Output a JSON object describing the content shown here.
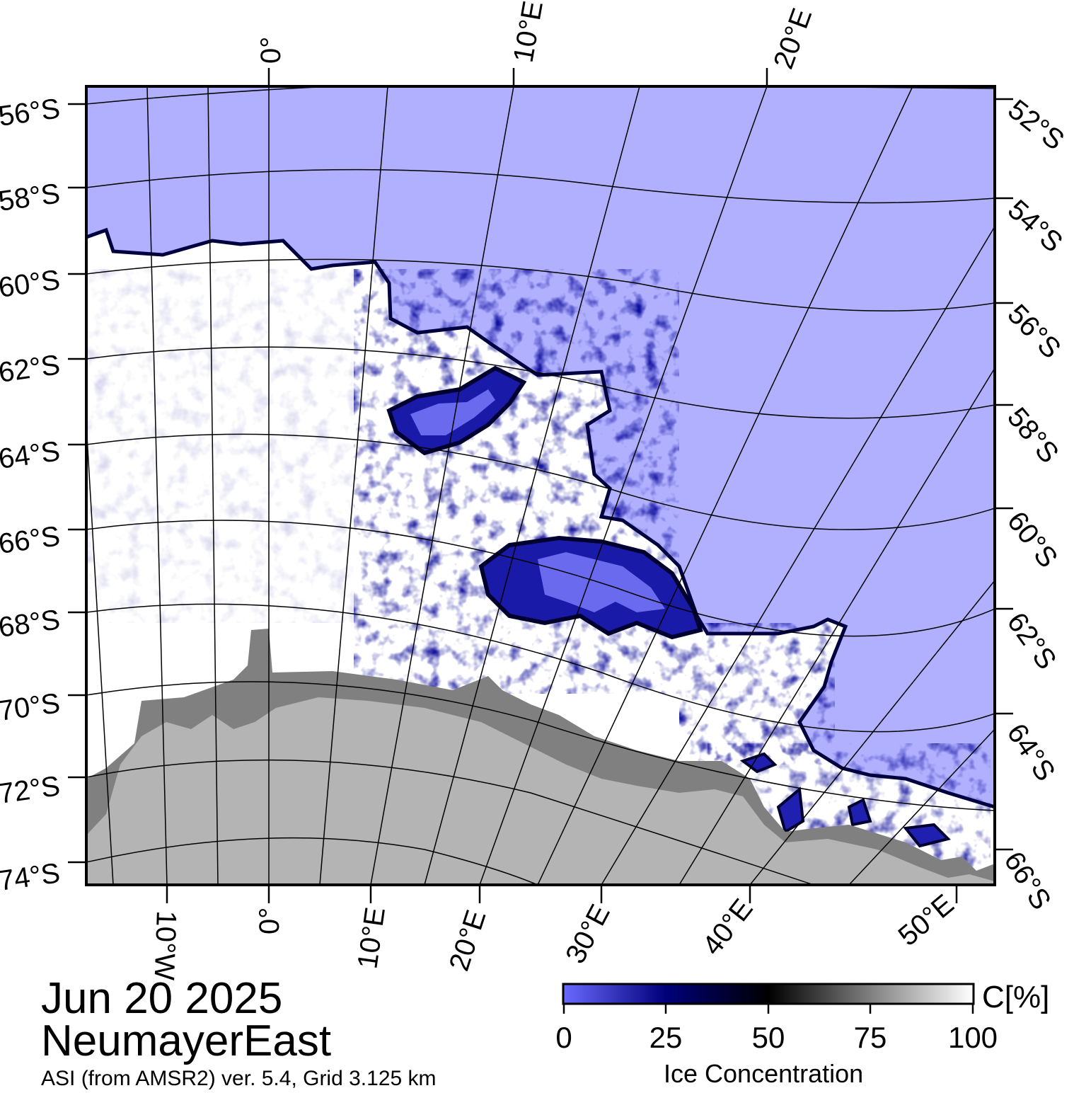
{
  "map": {
    "date": "Jun 20 2025",
    "region": "NeumayerEast",
    "source": "ASI (from AMSR2) ver. 5.4,  Grid 3.125 km",
    "colors": {
      "open_water": "#b0b0ff",
      "ice_high": "#ffffff",
      "ice_mid": "#000000",
      "ice_low": "#00007a",
      "ice_shelf": "#808080",
      "land": "#b4b4b4"
    },
    "latitude_labels_left": [
      "56°S",
      "58°S",
      "60°S",
      "62°S",
      "64°S",
      "66°S",
      "68°S",
      "70°S",
      "72°S",
      "74°S"
    ],
    "latitude_labels_right": [
      "52°S",
      "54°S",
      "56°S",
      "58°S",
      "60°S",
      "62°S",
      "64°S",
      "66°S"
    ],
    "longitude_labels_top": [
      "0°",
      "10°E",
      "20°E"
    ],
    "longitude_labels_bottom": [
      "10°W",
      "0°",
      "10°E",
      "20°E",
      "30°E",
      "40°E",
      "50°E"
    ]
  },
  "colorbar": {
    "unit": "C[%]",
    "title": "Ice Concentration",
    "ticks": [
      "0",
      "25",
      "50",
      "75",
      "100"
    ],
    "tick_values": [
      0,
      25,
      50,
      75,
      100
    ],
    "colors": [
      "#6a6aff",
      "#00007a",
      "#000000",
      "#808080",
      "#ffffff"
    ]
  }
}
